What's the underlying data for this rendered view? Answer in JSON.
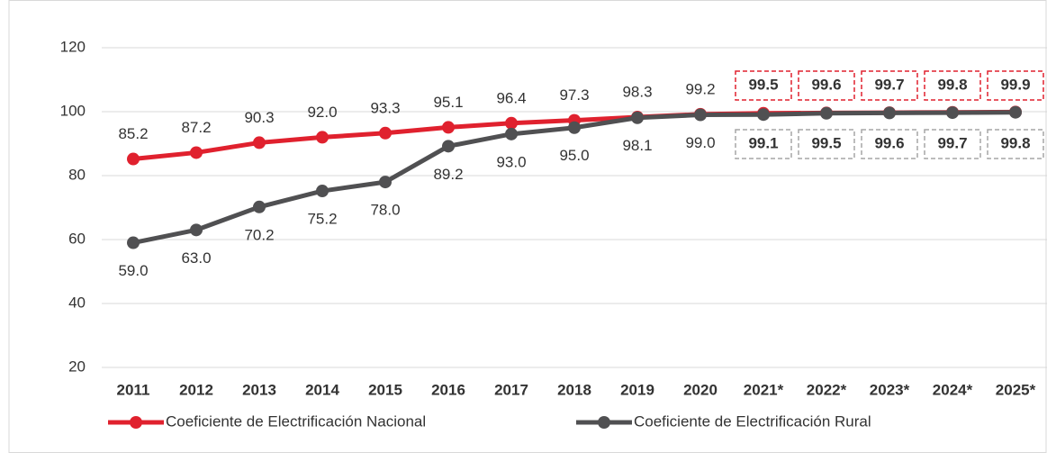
{
  "chart_data": {
    "type": "line",
    "categories": [
      "2011",
      "2012",
      "2013",
      "2014",
      "2015",
      "2016",
      "2017",
      "2018",
      "2019",
      "2020",
      "2021*",
      "2022*",
      "2023*",
      "2024*",
      "2025*"
    ],
    "series": [
      {
        "name": "Coeficiente de Electrificación Nacional",
        "color": "#e0212e",
        "values": [
          85.2,
          87.2,
          90.3,
          92.0,
          93.3,
          95.1,
          96.4,
          97.3,
          98.3,
          99.2,
          99.5,
          99.6,
          99.7,
          99.8,
          99.9
        ],
        "value_labels": [
          "85.2",
          "87.2",
          "90.3",
          "92.0",
          "93.3",
          "95.1",
          "96.4",
          "97.3",
          "98.3",
          "99.2",
          "99.5",
          "99.6",
          "99.7",
          "99.8",
          "99.9"
        ]
      },
      {
        "name": "Coeficiente de Electrificación Rural",
        "color": "#505052",
        "values": [
          59.0,
          63.0,
          70.2,
          75.2,
          78.0,
          89.2,
          93.0,
          95.0,
          98.1,
          99.0,
          99.1,
          99.5,
          99.6,
          99.7,
          99.8
        ],
        "value_labels": [
          "59.0",
          "63.0",
          "70.2",
          "75.2",
          "78.0",
          "89.2",
          "93.0",
          "95.0",
          "98.1",
          "99.0",
          "99.1",
          "99.5",
          "99.6",
          "99.7",
          "99.8"
        ]
      }
    ],
    "ylim": [
      20,
      120
    ],
    "yticks": [
      20,
      40,
      60,
      80,
      100,
      120
    ],
    "grid": true,
    "legend": "bottom"
  }
}
